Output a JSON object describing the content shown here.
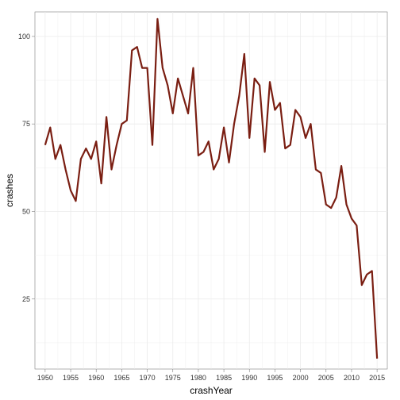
{
  "chart_data": {
    "type": "line",
    "xlabel": "crashYear",
    "ylabel": "crashes",
    "xlim": [
      1948,
      2017
    ],
    "ylim": [
      5,
      107
    ],
    "x_ticks": [
      1950,
      1955,
      1960,
      1965,
      1970,
      1975,
      1980,
      1985,
      1990,
      1995,
      2000,
      2005,
      2010,
      2015
    ],
    "y_ticks": [
      25,
      50,
      75,
      100
    ],
    "grid": true,
    "line_color": "#7a1e12",
    "panel_border_color": "#7f7f7f",
    "grid_color": "#ebebeb",
    "series": [
      {
        "x": [
          1950,
          1951,
          1952,
          1953,
          1954,
          1955,
          1956,
          1957,
          1958,
          1959,
          1960,
          1961,
          1962,
          1963,
          1964,
          1965,
          1966,
          1967,
          1968,
          1969,
          1970,
          1971,
          1972,
          1973,
          1974,
          1975,
          1976,
          1977,
          1978,
          1979,
          1980,
          1981,
          1982,
          1983,
          1984,
          1985,
          1986,
          1987,
          1988,
          1989,
          1990,
          1991,
          1992,
          1993,
          1994,
          1995,
          1996,
          1997,
          1998,
          1999,
          2000,
          2001,
          2002,
          2003,
          2004,
          2005,
          2006,
          2007,
          2008,
          2009,
          2010,
          2011,
          2012,
          2013,
          2014,
          2015
        ],
        "values": [
          69,
          74,
          65,
          69,
          62,
          56,
          53,
          65,
          68,
          65,
          70,
          58,
          77,
          62,
          69,
          75,
          76,
          96,
          97,
          91,
          91,
          69,
          105,
          91,
          86,
          78,
          88,
          83,
          78,
          91,
          66,
          67,
          70,
          62,
          65,
          74,
          64,
          75,
          83,
          95,
          71,
          88,
          86,
          67,
          87,
          79,
          81,
          68,
          69,
          79,
          77,
          71,
          75,
          62,
          61,
          52,
          51,
          54,
          63,
          52,
          48,
          46,
          29,
          32,
          33,
          8
        ]
      }
    ]
  }
}
